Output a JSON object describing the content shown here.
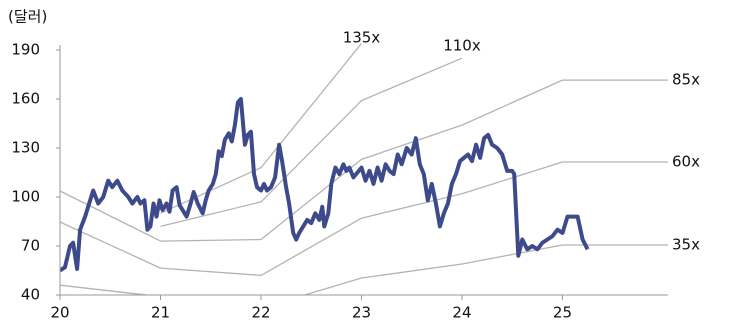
{
  "chart_data": {
    "type": "line",
    "y_axis_label": "(달러)",
    "xlim": [
      20,
      26.05
    ],
    "xticks": [
      20,
      21,
      22,
      23,
      24,
      25
    ],
    "ylim": [
      40,
      190
    ],
    "yticks": [
      40,
      70,
      100,
      130,
      160,
      190
    ],
    "series": [
      {
        "color": "#3d4a8c",
        "x": [
          20.0,
          20.05,
          20.1,
          20.13,
          20.17,
          20.2,
          20.25,
          20.33,
          20.38,
          20.43,
          20.48,
          20.52,
          20.57,
          20.62,
          20.68,
          20.72,
          20.77,
          20.8,
          20.84,
          20.87,
          20.9,
          20.93,
          20.96,
          20.99,
          21.02,
          21.06,
          21.09,
          21.12,
          21.16,
          21.19,
          21.22,
          21.26,
          21.3,
          21.33,
          21.37,
          21.42,
          21.45,
          21.48,
          21.52,
          21.55,
          21.58,
          21.61,
          21.64,
          21.68,
          21.71,
          21.74,
          21.77,
          21.8,
          21.84,
          21.87,
          21.9,
          21.93,
          21.96,
          22.0,
          22.03,
          22.06,
          22.1,
          22.14,
          22.18,
          22.21,
          22.25,
          22.28,
          22.32,
          22.35,
          22.38,
          22.42,
          22.46,
          22.5,
          22.54,
          22.58,
          22.61,
          22.63,
          22.67,
          22.7,
          22.74,
          22.78,
          22.82,
          22.85,
          22.88,
          22.92,
          22.96,
          23.0,
          23.04,
          23.08,
          23.12,
          23.16,
          23.2,
          23.24,
          23.28,
          23.32,
          23.36,
          23.4,
          23.45,
          23.5,
          23.54,
          23.58,
          23.62,
          23.66,
          23.7,
          23.74,
          23.78,
          23.82,
          23.86,
          23.9,
          23.94,
          23.98,
          24.02,
          24.06,
          24.1,
          24.14,
          24.18,
          24.22,
          24.26,
          24.3,
          24.35,
          24.4,
          24.45,
          24.5,
          24.52,
          24.56,
          24.6,
          24.65,
          24.7,
          24.75,
          24.8,
          24.85,
          24.9,
          24.95,
          25.0,
          25.05,
          25.1,
          25.15,
          25.2,
          25.25
        ],
        "values": [
          55,
          57,
          70,
          72,
          56,
          80,
          88,
          104,
          96,
          100,
          110,
          106,
          110,
          104,
          100,
          96,
          100,
          96,
          98,
          80,
          82,
          96,
          88,
          98,
          92,
          96,
          91,
          104,
          106,
          95,
          92,
          88,
          96,
          103,
          96,
          90,
          98,
          104,
          108,
          114,
          128,
          125,
          135,
          139,
          134,
          144,
          158,
          160,
          132,
          138,
          140,
          114,
          106,
          104,
          108,
          104,
          106,
          112,
          132,
          122,
          106,
          96,
          78,
          74,
          78,
          82,
          86,
          84,
          90,
          86,
          94,
          82,
          90,
          108,
          118,
          114,
          120,
          116,
          118,
          112,
          115,
          118,
          110,
          116,
          108,
          118,
          110,
          120,
          116,
          114,
          126,
          120,
          130,
          126,
          136,
          120,
          114,
          98,
          108,
          96,
          82,
          90,
          96,
          108,
          114,
          122,
          124,
          126,
          122,
          132,
          124,
          136,
          138,
          132,
          130,
          126,
          116,
          116,
          114,
          64,
          74,
          68,
          70,
          68,
          72,
          74,
          76,
          80,
          78,
          88,
          88,
          88,
          74,
          68
        ]
      },
      {
        "name": "135x",
        "color": "#b3b3b3",
        "x": [
          21,
          22,
          23
        ],
        "values": [
          90,
          118,
          194
        ]
      },
      {
        "name": "110x",
        "color": "#b3b3b3",
        "x": [
          21,
          22,
          23,
          24
        ],
        "values": [
          82,
          97,
          159,
          185
        ]
      },
      {
        "name": "85x",
        "color": "#b3b3b3",
        "x": [
          20,
          21,
          22,
          23,
          24,
          25,
          26.05
        ],
        "values": [
          103.7,
          73,
          74,
          123,
          144,
          171.6,
          171.6
        ]
      },
      {
        "name": "60x",
        "color": "#b3b3b3",
        "x": [
          20,
          21,
          22,
          23,
          24,
          25,
          26.05
        ],
        "values": [
          84.7,
          56.5,
          52,
          87,
          102,
          121.4,
          121.4
        ]
      },
      {
        "name": "35x",
        "color": "#b3b3b3",
        "x": [
          20,
          21,
          22,
          23,
          24,
          25,
          26.05
        ],
        "values": [
          46,
          39,
          32,
          50.4,
          59,
          70.6,
          70.6
        ]
      }
    ]
  }
}
